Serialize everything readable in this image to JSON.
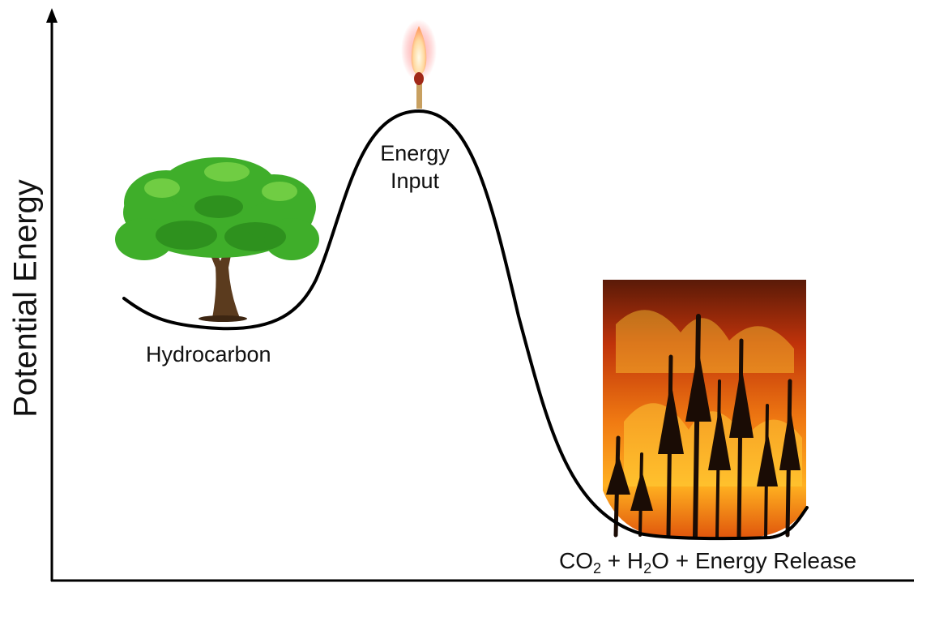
{
  "y_axis_label": "Potential Energy",
  "labels": {
    "reactant": "Hydrocarbon",
    "activation_line1": "Energy",
    "activation_line2": "Input",
    "products": {
      "co": "CO",
      "sub1": "2",
      "plus_h": " + H",
      "sub2": "2",
      "rest": "O + Energy Release"
    }
  },
  "illustrations": {
    "reactant_image": "tree-icon",
    "activation_image": "lit-match-icon",
    "product_image": "forest-fire-icon"
  },
  "colors": {
    "curve": "#000000",
    "tree_foliage": "#3fae2a",
    "fire": "#e8580c"
  }
}
